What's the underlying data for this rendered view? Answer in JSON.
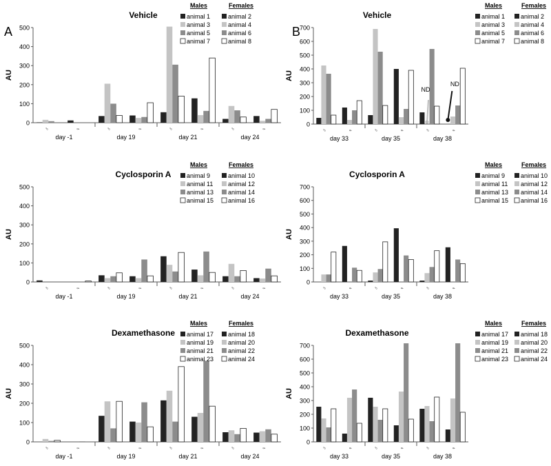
{
  "panel_labels": {
    "A": "A",
    "B": "B"
  },
  "legend_headers": {
    "males": "Males",
    "females": "Females"
  },
  "sex_symbols": {
    "male": "♂",
    "female": "♀"
  },
  "series_colors": [
    "#222222",
    "#c4c4c4",
    "#8c8c8c",
    "#ffffff"
  ],
  "chart_data": [
    {
      "type": "bar",
      "panel": "A",
      "title": "Vehicle",
      "ylabel": "AU",
      "ylim": [
        0,
        500
      ],
      "yticks": [
        0,
        100,
        200,
        300,
        400,
        500
      ],
      "categories": [
        "day -1",
        "day 19",
        "day 21",
        "day 24"
      ],
      "legend": {
        "males": [
          "animal 1",
          "animal 3",
          "animal 5",
          "animal 7"
        ],
        "females": [
          "animal 2",
          "animal 4",
          "animal 6",
          "animal 8"
        ]
      },
      "male_values": [
        [
          2,
          15,
          8,
          0
        ],
        [
          35,
          205,
          100,
          38
        ],
        [
          55,
          505,
          305,
          140
        ],
        [
          20,
          88,
          65,
          30
        ]
      ],
      "female_values": [
        [
          12,
          0,
          0,
          0
        ],
        [
          38,
          25,
          30,
          105
        ],
        [
          128,
          40,
          62,
          340
        ],
        [
          35,
          10,
          20,
          70
        ]
      ],
      "annotations": []
    },
    {
      "type": "bar",
      "panel": "B",
      "title": "Vehicle",
      "ylabel": "AU",
      "ylim": [
        0,
        700
      ],
      "yticks": [
        0,
        100,
        200,
        300,
        400,
        500,
        600,
        700
      ],
      "categories": [
        "day 33",
        "day 35",
        "day 38"
      ],
      "legend": {
        "males": [
          "animal 1",
          "animal 3",
          "animal 5",
          "animal 7"
        ],
        "females": [
          "animal 2",
          "animal 4",
          "animal 6",
          "animal 8"
        ]
      },
      "male_values": [
        [
          45,
          425,
          365,
          65
        ],
        [
          65,
          690,
          525,
          135
        ],
        [
          85,
          0,
          545,
          130
        ]
      ],
      "female_values": [
        [
          120,
          30,
          100,
          170
        ],
        [
          400,
          50,
          110,
          390
        ],
        [
          0,
          55,
          135,
          405
        ]
      ],
      "annotations": [
        "ND",
        "ND"
      ]
    },
    {
      "type": "bar",
      "panel": "A",
      "title": "Cyclosporin A",
      "ylabel": "AU",
      "ylim": [
        0,
        500
      ],
      "yticks": [
        0,
        100,
        200,
        300,
        400,
        500
      ],
      "categories": [
        "day -1",
        "day 19",
        "day 21",
        "day 24"
      ],
      "legend": {
        "males": [
          "animal 9",
          "animal 11",
          "animal 13",
          "animal 15"
        ],
        "females": [
          "animal 10",
          "animal 12",
          "animal 14",
          "animal 16"
        ]
      },
      "male_values": [
        [
          8,
          0,
          0,
          0
        ],
        [
          35,
          20,
          30,
          48
        ],
        [
          135,
          90,
          55,
          155
        ],
        [
          30,
          95,
          30,
          60
        ]
      ],
      "female_values": [
        [
          0,
          0,
          0,
          5
        ],
        [
          30,
          20,
          118,
          32
        ],
        [
          65,
          35,
          160,
          50
        ],
        [
          20,
          18,
          70,
          32
        ]
      ],
      "annotations": []
    },
    {
      "type": "bar",
      "panel": "B",
      "title": "Cyclosporin A",
      "ylabel": "AU",
      "ylim": [
        0,
        700
      ],
      "yticks": [
        0,
        100,
        200,
        300,
        400,
        500,
        600,
        700
      ],
      "categories": [
        "day 33",
        "day 35",
        "day 38"
      ],
      "legend": {
        "males": [
          "animal 9",
          "animal 11",
          "animal 13",
          "animal 15"
        ],
        "females": [
          "animal 10",
          "animal 12",
          "animal 14",
          "animal 16"
        ]
      },
      "male_values": [
        [
          0,
          55,
          55,
          220
        ],
        [
          10,
          70,
          95,
          295
        ],
        [
          10,
          65,
          110,
          230
        ]
      ],
      "female_values": [
        [
          265,
          0,
          105,
          85
        ],
        [
          395,
          0,
          195,
          165
        ],
        [
          255,
          0,
          165,
          135
        ]
      ],
      "annotations": []
    },
    {
      "type": "bar",
      "panel": "A",
      "title": "Dexamethasone",
      "ylabel": "AU",
      "ylim": [
        0,
        500
      ],
      "yticks": [
        0,
        100,
        200,
        300,
        400,
        500
      ],
      "categories": [
        "day -1",
        "day 19",
        "day 21",
        "day 24"
      ],
      "legend": {
        "males": [
          "animal 17",
          "animal 19",
          "animal 21",
          "animal 23"
        ],
        "females": [
          "animal 18",
          "animal 20",
          "animal 22",
          "animal 24"
        ]
      },
      "male_values": [
        [
          0,
          15,
          5,
          8
        ],
        [
          135,
          210,
          70,
          210
        ],
        [
          215,
          265,
          105,
          390
        ],
        [
          50,
          60,
          40,
          70
        ]
      ],
      "female_values": [
        [
          0,
          0,
          3,
          0
        ],
        [
          105,
          100,
          205,
          78
        ],
        [
          130,
          150,
          420,
          185
        ],
        [
          48,
          55,
          65,
          40
        ]
      ],
      "annotations": []
    },
    {
      "type": "bar",
      "panel": "B",
      "title": "Dexamethasone",
      "ylabel": "AU",
      "ylim": [
        0,
        700
      ],
      "yticks": [
        0,
        100,
        200,
        300,
        400,
        500,
        600,
        700
      ],
      "categories": [
        "day 33",
        "day 35",
        "day 38"
      ],
      "legend": {
        "males": [
          "animal 17",
          "animal 19",
          "animal 21",
          "animal 23"
        ],
        "females": [
          "animal 18",
          "animal 20",
          "animal 22",
          "animal 24"
        ]
      },
      "male_values": [
        [
          255,
          170,
          105,
          240
        ],
        [
          320,
          255,
          160,
          240
        ],
        [
          240,
          260,
          150,
          325
        ]
      ],
      "female_values": [
        [
          60,
          320,
          380,
          135
        ],
        [
          120,
          365,
          715,
          165
        ],
        [
          90,
          315,
          715,
          215
        ]
      ],
      "annotations": []
    }
  ]
}
